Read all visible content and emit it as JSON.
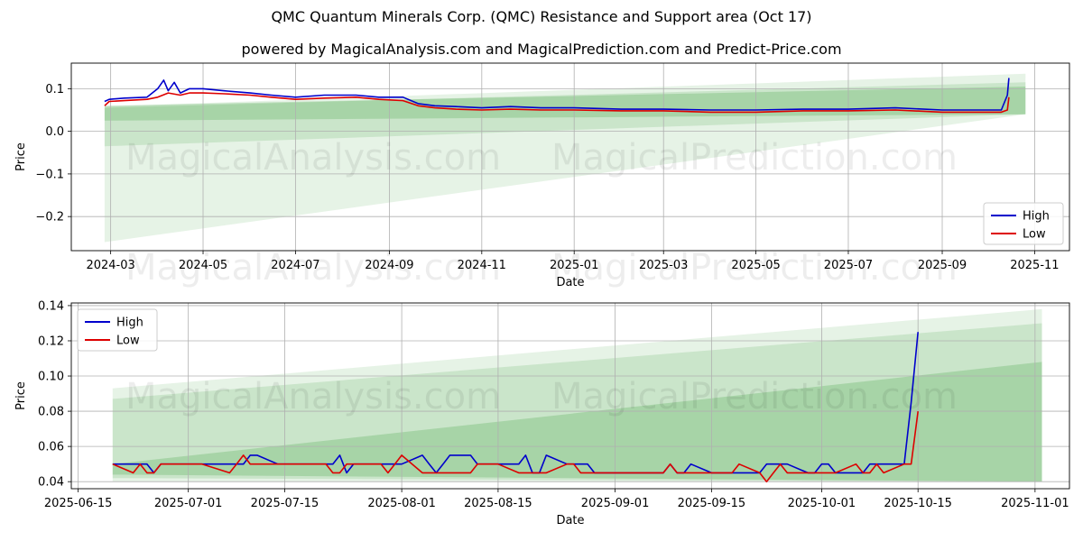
{
  "title": "QMC Quantum Minerals Corp. (QMC) Resistance and Support area (Oct 17)",
  "subtitle": "powered by MagicalAnalysis.com and MagicalPrediction.com and Predict-Price.com",
  "watermarks": [
    "MagicalAnalysis.com",
    "MagicalPrediction.com"
  ],
  "colors": {
    "high": "#0000cc",
    "low": "#dd0000",
    "band": "#2e9b2e"
  },
  "chart_data": [
    {
      "type": "line",
      "xlabel": "Date",
      "ylabel": "Price",
      "xlim": [
        "2024-02-04",
        "2025-11-24"
      ],
      "ylim": [
        -0.28,
        0.16
      ],
      "xticks": [
        "2024-03",
        "2024-05",
        "2024-07",
        "2024-09",
        "2024-11",
        "2025-01",
        "2025-03",
        "2025-05",
        "2025-07",
        "2025-09",
        "2025-11"
      ],
      "xtick_dates": [
        "2024-03-01",
        "2024-05-01",
        "2024-07-01",
        "2024-09-01",
        "2024-11-01",
        "2025-01-01",
        "2025-03-01",
        "2025-05-01",
        "2025-07-01",
        "2025-09-01",
        "2025-11-01"
      ],
      "yticks": [
        0.1,
        0.0,
        -0.1,
        -0.2
      ],
      "ytick_labels": [
        "0.1",
        "0.0",
        "−0.1",
        "−0.2"
      ],
      "grid": true,
      "legend": "lower-right",
      "bands": [
        {
          "x": [
            "2024-02-26",
            "2025-10-26"
          ],
          "upper": [
            0.058,
            0.135
          ],
          "lower": [
            -0.26,
            0.04
          ]
        },
        {
          "x": [
            "2024-02-26",
            "2025-10-26"
          ],
          "upper": [
            0.055,
            0.115
          ],
          "lower": [
            -0.035,
            0.04
          ]
        },
        {
          "x": [
            "2024-02-26",
            "2025-10-26"
          ],
          "upper": [
            0.06,
            0.105
          ],
          "lower": [
            0.025,
            0.04
          ]
        }
      ],
      "series": [
        {
          "name": "High",
          "x": [
            "2024-02-26",
            "2024-02-29",
            "2024-03-10",
            "2024-03-25",
            "2024-04-01",
            "2024-04-05",
            "2024-04-08",
            "2024-04-12",
            "2024-04-16",
            "2024-04-22",
            "2024-05-01",
            "2024-05-15",
            "2024-06-01",
            "2024-06-15",
            "2024-07-01",
            "2024-07-20",
            "2024-08-10",
            "2024-08-25",
            "2024-09-10",
            "2024-09-20",
            "2024-10-01",
            "2024-10-15",
            "2024-11-01",
            "2024-11-20",
            "2024-12-10",
            "2025-01-01",
            "2025-02-01",
            "2025-03-01",
            "2025-04-01",
            "2025-05-01",
            "2025-06-01",
            "2025-07-01",
            "2025-08-01",
            "2025-09-01",
            "2025-10-01",
            "2025-10-10",
            "2025-10-14",
            "2025-10-15"
          ],
          "values": [
            0.07,
            0.075,
            0.078,
            0.08,
            0.1,
            0.12,
            0.095,
            0.115,
            0.09,
            0.1,
            0.1,
            0.095,
            0.09,
            0.085,
            0.08,
            0.085,
            0.085,
            0.08,
            0.08,
            0.065,
            0.06,
            0.058,
            0.055,
            0.058,
            0.055,
            0.055,
            0.052,
            0.052,
            0.05,
            0.05,
            0.052,
            0.052,
            0.055,
            0.05,
            0.05,
            0.05,
            0.085,
            0.125
          ]
        },
        {
          "name": "Low",
          "x": [
            "2024-02-26",
            "2024-02-29",
            "2024-03-10",
            "2024-03-25",
            "2024-04-01",
            "2024-04-08",
            "2024-04-16",
            "2024-04-22",
            "2024-05-01",
            "2024-05-15",
            "2024-06-01",
            "2024-06-15",
            "2024-07-01",
            "2024-07-20",
            "2024-08-10",
            "2024-08-25",
            "2024-09-10",
            "2024-09-20",
            "2024-10-01",
            "2024-10-15",
            "2024-11-01",
            "2024-11-20",
            "2024-12-10",
            "2025-01-01",
            "2025-02-01",
            "2025-03-01",
            "2025-04-01",
            "2025-05-01",
            "2025-06-01",
            "2025-07-01",
            "2025-08-01",
            "2025-09-01",
            "2025-10-01",
            "2025-10-10",
            "2025-10-14",
            "2025-10-15"
          ],
          "values": [
            0.06,
            0.07,
            0.072,
            0.075,
            0.08,
            0.09,
            0.085,
            0.09,
            0.09,
            0.088,
            0.085,
            0.08,
            0.075,
            0.078,
            0.08,
            0.075,
            0.072,
            0.06,
            0.055,
            0.052,
            0.05,
            0.052,
            0.05,
            0.05,
            0.048,
            0.048,
            0.045,
            0.045,
            0.048,
            0.048,
            0.05,
            0.045,
            0.045,
            0.045,
            0.05,
            0.08
          ]
        }
      ]
    },
    {
      "type": "line",
      "xlabel": "Date",
      "ylabel": "Price",
      "xlim": [
        "2025-06-14",
        "2025-11-06"
      ],
      "ylim": [
        0.036,
        0.1415
      ],
      "xticks": [
        "2025-06-15",
        "2025-07-01",
        "2025-07-15",
        "2025-08-01",
        "2025-08-15",
        "2025-09-01",
        "2025-09-15",
        "2025-10-01",
        "2025-10-15",
        "2025-11-01"
      ],
      "yticks": [
        0.04,
        0.06,
        0.08,
        0.1,
        0.12,
        0.14
      ],
      "ytick_labels": [
        "0.04",
        "0.06",
        "0.08",
        "0.10",
        "0.12",
        "0.14"
      ],
      "grid": true,
      "legend": "upper-left",
      "bands": [
        {
          "x": [
            "2025-06-20",
            "2025-11-02"
          ],
          "upper": [
            0.093,
            0.138
          ],
          "lower": [
            0.04,
            0.04
          ]
        },
        {
          "x": [
            "2025-06-20",
            "2025-11-02"
          ],
          "upper": [
            0.087,
            0.13
          ],
          "lower": [
            0.042,
            0.04
          ]
        },
        {
          "x": [
            "2025-06-20",
            "2025-11-02"
          ],
          "upper": [
            0.05,
            0.108
          ],
          "lower": [
            0.044,
            0.04
          ]
        }
      ],
      "series": [
        {
          "name": "High",
          "x": [
            "2025-06-20",
            "2025-06-23",
            "2025-06-24",
            "2025-06-25",
            "2025-06-26",
            "2025-06-27",
            "2025-06-30",
            "2025-07-01",
            "2025-07-02",
            "2025-07-03",
            "2025-07-07",
            "2025-07-08",
            "2025-07-09",
            "2025-07-10",
            "2025-07-11",
            "2025-07-14",
            "2025-07-15",
            "2025-07-16",
            "2025-07-21",
            "2025-07-22",
            "2025-07-23",
            "2025-07-24",
            "2025-07-25",
            "2025-07-28",
            "2025-07-29",
            "2025-07-30",
            "2025-07-31",
            "2025-08-01",
            "2025-08-04",
            "2025-08-05",
            "2025-08-06",
            "2025-08-07",
            "2025-08-08",
            "2025-08-11",
            "2025-08-12",
            "2025-08-13",
            "2025-08-14",
            "2025-08-15",
            "2025-08-18",
            "2025-08-19",
            "2025-08-20",
            "2025-08-21",
            "2025-08-22",
            "2025-08-25",
            "2025-08-26",
            "2025-08-27",
            "2025-08-28",
            "2025-08-29",
            "2025-09-02",
            "2025-09-03",
            "2025-09-04",
            "2025-09-05",
            "2025-09-08",
            "2025-09-09",
            "2025-09-10",
            "2025-09-11",
            "2025-09-12",
            "2025-09-15",
            "2025-09-16",
            "2025-09-17",
            "2025-09-18",
            "2025-09-19",
            "2025-09-22",
            "2025-09-23",
            "2025-09-24",
            "2025-09-25",
            "2025-09-26",
            "2025-09-29",
            "2025-09-30",
            "2025-10-01",
            "2025-10-02",
            "2025-10-03",
            "2025-10-06",
            "2025-10-07",
            "2025-10-08",
            "2025-10-09",
            "2025-10-10",
            "2025-10-13",
            "2025-10-14",
            "2025-10-15"
          ],
          "values": [
            0.05,
            0.05,
            0.05,
            0.05,
            0.045,
            0.05,
            0.05,
            0.05,
            0.05,
            0.05,
            0.05,
            0.05,
            0.05,
            0.055,
            0.055,
            0.05,
            0.05,
            0.05,
            0.05,
            0.05,
            0.055,
            0.045,
            0.05,
            0.05,
            0.05,
            0.05,
            0.05,
            0.05,
            0.055,
            0.05,
            0.045,
            0.05,
            0.055,
            0.055,
            0.05,
            0.05,
            0.05,
            0.05,
            0.05,
            0.055,
            0.045,
            0.045,
            0.055,
            0.05,
            0.05,
            0.05,
            0.05,
            0.045,
            0.045,
            0.045,
            0.045,
            0.045,
            0.045,
            0.05,
            0.045,
            0.045,
            0.05,
            0.045,
            0.045,
            0.045,
            0.045,
            0.045,
            0.045,
            0.05,
            0.05,
            0.05,
            0.05,
            0.045,
            0.045,
            0.05,
            0.05,
            0.045,
            0.045,
            0.045,
            0.05,
            0.05,
            0.05,
            0.05,
            0.085,
            0.125
          ]
        },
        {
          "name": "Low",
          "x": [
            "2025-06-20",
            "2025-06-23",
            "2025-06-24",
            "2025-06-25",
            "2025-06-26",
            "2025-06-27",
            "2025-06-30",
            "2025-07-01",
            "2025-07-02",
            "2025-07-03",
            "2025-07-07",
            "2025-07-08",
            "2025-07-09",
            "2025-07-10",
            "2025-07-11",
            "2025-07-14",
            "2025-07-15",
            "2025-07-16",
            "2025-07-21",
            "2025-07-22",
            "2025-07-23",
            "2025-07-24",
            "2025-07-25",
            "2025-07-28",
            "2025-07-29",
            "2025-07-30",
            "2025-07-31",
            "2025-08-01",
            "2025-08-04",
            "2025-08-05",
            "2025-08-06",
            "2025-08-07",
            "2025-08-08",
            "2025-08-11",
            "2025-08-12",
            "2025-08-13",
            "2025-08-14",
            "2025-08-15",
            "2025-08-18",
            "2025-08-19",
            "2025-08-20",
            "2025-08-21",
            "2025-08-22",
            "2025-08-25",
            "2025-08-26",
            "2025-08-27",
            "2025-08-28",
            "2025-08-29",
            "2025-09-02",
            "2025-09-03",
            "2025-09-04",
            "2025-09-05",
            "2025-09-08",
            "2025-09-09",
            "2025-09-10",
            "2025-09-11",
            "2025-09-12",
            "2025-09-15",
            "2025-09-16",
            "2025-09-17",
            "2025-09-18",
            "2025-09-19",
            "2025-09-22",
            "2025-09-23",
            "2025-09-24",
            "2025-09-25",
            "2025-09-26",
            "2025-09-29",
            "2025-09-30",
            "2025-10-01",
            "2025-10-02",
            "2025-10-03",
            "2025-10-06",
            "2025-10-07",
            "2025-10-08",
            "2025-10-09",
            "2025-10-10",
            "2025-10-13",
            "2025-10-14",
            "2025-10-15"
          ],
          "values": [
            0.05,
            0.045,
            0.05,
            0.045,
            0.045,
            0.05,
            0.05,
            0.05,
            0.05,
            0.05,
            0.045,
            0.05,
            0.055,
            0.05,
            0.05,
            0.05,
            0.05,
            0.05,
            0.05,
            0.045,
            0.045,
            0.05,
            0.05,
            0.05,
            0.05,
            0.045,
            0.05,
            0.055,
            0.045,
            0.045,
            0.045,
            0.045,
            0.045,
            0.045,
            0.05,
            0.05,
            0.05,
            0.05,
            0.045,
            0.045,
            0.045,
            0.045,
            0.045,
            0.05,
            0.05,
            0.045,
            0.045,
            0.045,
            0.045,
            0.045,
            0.045,
            0.045,
            0.045,
            0.05,
            0.045,
            0.045,
            0.045,
            0.045,
            0.045,
            0.045,
            0.045,
            0.05,
            0.045,
            0.04,
            0.045,
            0.05,
            0.045,
            0.045,
            0.045,
            0.045,
            0.045,
            0.045,
            0.05,
            0.045,
            0.045,
            0.05,
            0.045,
            0.05,
            0.05,
            0.08
          ]
        }
      ]
    }
  ]
}
